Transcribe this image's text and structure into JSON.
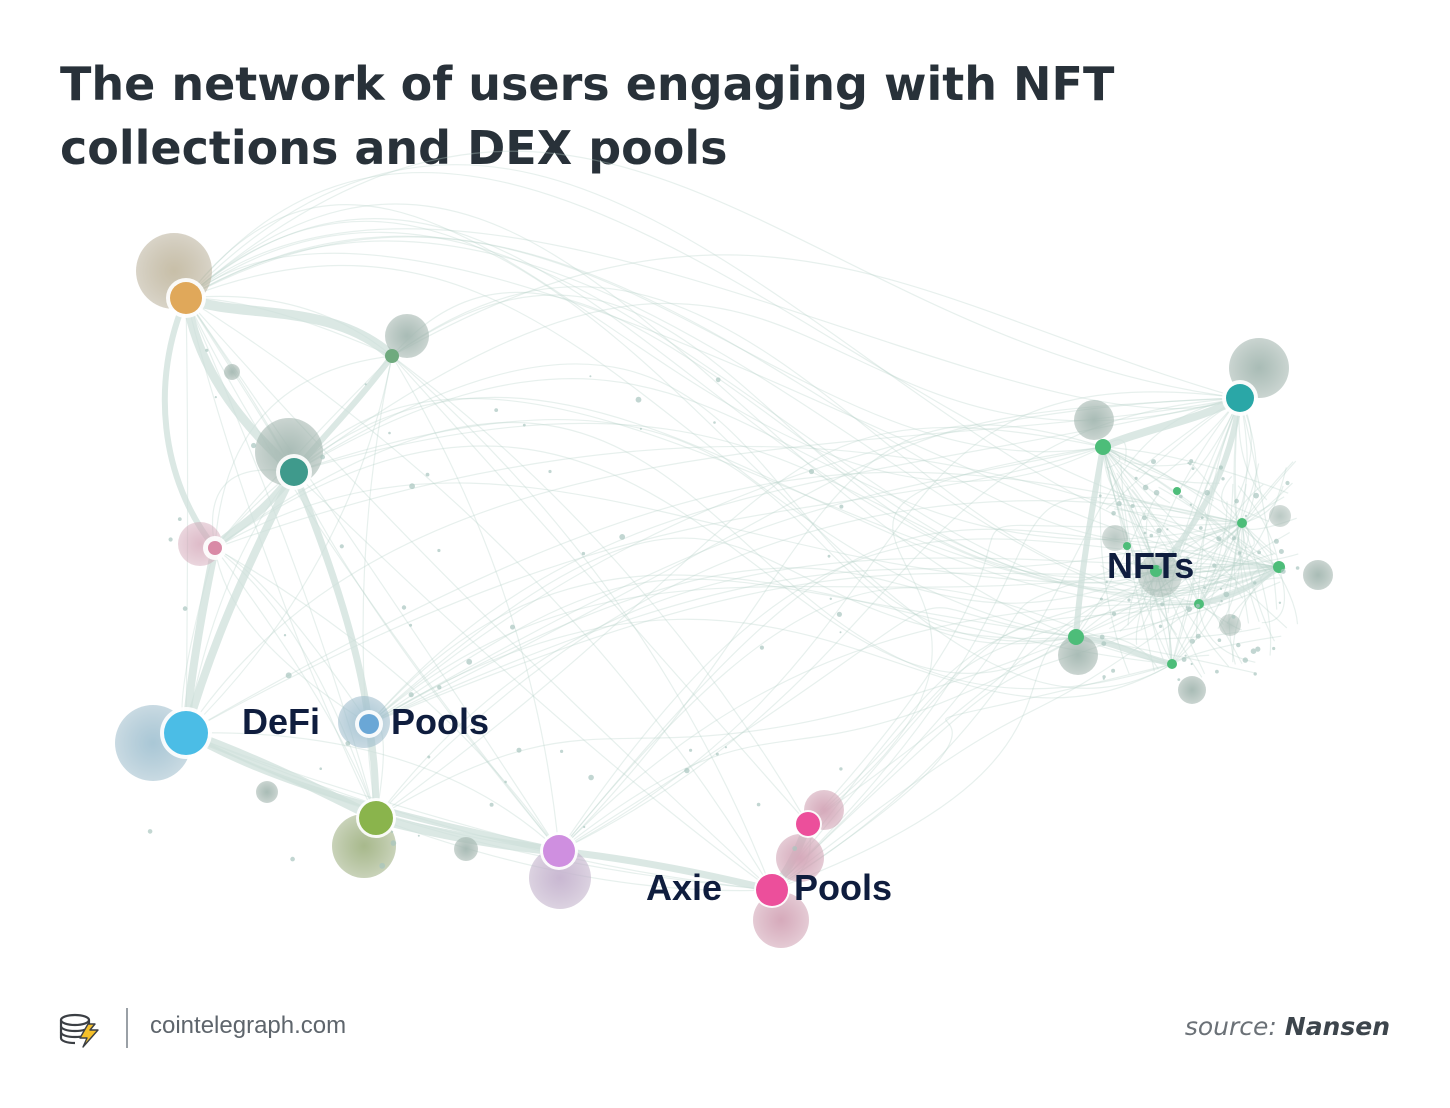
{
  "title": "The network of users engaging with NFT collections and DEX pools",
  "labels": {
    "defi": "DeFi",
    "defi_pools": "Pools",
    "nfts": "NFTs",
    "axie": "Axie",
    "axie_pools": "Pools"
  },
  "colors": {
    "edge": "#b9d3cc",
    "orange": "#e0a85a",
    "teal": "#3f9a8c",
    "pink_light": "#d98aa6",
    "blue": "#4bbde6",
    "steel_blue": "#6aa7d6",
    "olive": "#8ab44c",
    "violet": "#cf8fe0",
    "magenta": "#ec4f9b",
    "green": "#4dbd79",
    "cyan_teal": "#2aa7a7"
  },
  "footer": {
    "logo_icon": "cointelegraph-coins-lightning-icon",
    "site": "cointelegraph.com",
    "source_prefix": "source: ",
    "source_name": "Nansen"
  }
}
